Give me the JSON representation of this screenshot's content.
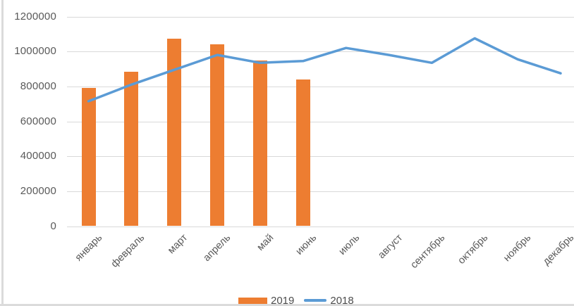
{
  "chart_data": {
    "type": "combo-bar-line",
    "categories": [
      "январь",
      "февраль",
      "март",
      "апрель",
      "май",
      "июнь",
      "июль",
      "август",
      "сентябрь",
      "октябрь",
      "ноябрь",
      "декабрь"
    ],
    "series": [
      {
        "name": "2019",
        "type": "bar",
        "color": "#ED7D31",
        "values": [
          790000,
          885000,
          1075000,
          1040000,
          950000,
          840000,
          null,
          null,
          null,
          null,
          null,
          null
        ]
      },
      {
        "name": "2018",
        "type": "line",
        "color": "#5B9BD5",
        "values": [
          715000,
          810000,
          895000,
          980000,
          935000,
          945000,
          1020000,
          980000,
          935000,
          1075000,
          955000,
          875000
        ]
      }
    ],
    "ylim": [
      0,
      1200000
    ],
    "ytick_step": 200000,
    "yticks": [
      {
        "label": "1200000",
        "value": 1200000
      },
      {
        "label": "1000000",
        "value": 1000000
      },
      {
        "label": "800000",
        "value": 800000
      },
      {
        "label": "600000",
        "value": 600000
      },
      {
        "label": "400000",
        "value": 400000
      },
      {
        "label": "200000",
        "value": 200000
      },
      {
        "label": "0",
        "value": 0
      }
    ],
    "grid": true,
    "legend_position": "bottom",
    "x_label_rotation_deg": -45
  },
  "style": {
    "bar_color": "#ED7D31",
    "line_color": "#5B9BD5",
    "grid_color": "#D9D9D9",
    "axis_text_color": "#595959",
    "legend_text_color": "#4d4d4d",
    "background": "#FFFFFF",
    "page_edge_color": "#DBDBDB"
  }
}
